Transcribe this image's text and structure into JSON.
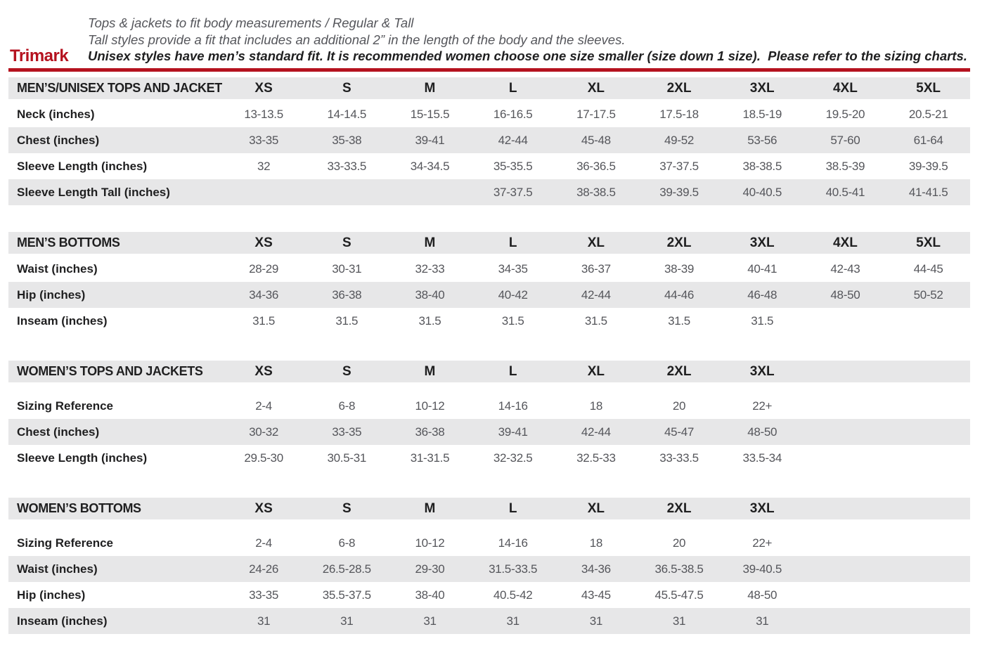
{
  "header": {
    "logo": "Trimark",
    "accent_color": "#b5121f",
    "row_shade_color": "#e7e7e8",
    "notes": [
      "Tops & jackets to fit body measurements / Regular & Tall",
      "Tall styles provide a fit that includes an additional 2” in the length of the body and the sleeves.",
      "Unisex styles have men’s standard fit. It is recommended women choose one size smaller (size down 1 size).  Please refer to the sizing charts."
    ]
  },
  "tables": [
    {
      "title": "MEN’S/UNISEX TOPS AND JACKETS",
      "columns": [
        "XS",
        "S",
        "M",
        "L",
        "XL",
        "2XL",
        "3XL",
        "4XL",
        "5XL"
      ],
      "rows": [
        {
          "label": "Neck (inches)",
          "values": [
            "13-13.5",
            "14-14.5",
            "15-15.5",
            "16-16.5",
            "17-17.5",
            "17.5-18",
            "18.5-19",
            "19.5-20",
            "20.5-21"
          ]
        },
        {
          "label": "Chest (inches)",
          "values": [
            "33-35",
            "35-38",
            "39-41",
            "42-44",
            "45-48",
            "49-52",
            "53-56",
            "57-60",
            "61-64"
          ]
        },
        {
          "label": "Sleeve Length (inches)",
          "values": [
            "32",
            "33-33.5",
            "34-34.5",
            "35-35.5",
            "36-36.5",
            "37-37.5",
            "38-38.5",
            "38.5-39",
            "39-39.5"
          ]
        },
        {
          "label": "Sleeve Length Tall (inches)",
          "values": [
            "",
            "",
            "",
            "37-37.5",
            "38-38.5",
            "39-39.5",
            "40-40.5",
            "40.5-41",
            "41-41.5"
          ]
        }
      ]
    },
    {
      "title": "MEN’S BOTTOMS",
      "columns": [
        "XS",
        "S",
        "M",
        "L",
        "XL",
        "2XL",
        "3XL",
        "4XL",
        "5XL"
      ],
      "rows": [
        {
          "label": "Waist (inches)",
          "values": [
            "28-29",
            "30-31",
            "32-33",
            "34-35",
            "36-37",
            "38-39",
            "40-41",
            "42-43",
            "44-45"
          ]
        },
        {
          "label": "Hip (inches)",
          "values": [
            "34-36",
            "36-38",
            "38-40",
            "40-42",
            "42-44",
            "44-46",
            "46-48",
            "48-50",
            "50-52"
          ]
        },
        {
          "label": "Inseam (inches)",
          "values": [
            "31.5",
            "31.5",
            "31.5",
            "31.5",
            "31.5",
            "31.5",
            "31.5",
            "",
            ""
          ]
        }
      ]
    },
    {
      "title": "WOMEN’S TOPS AND JACKETS",
      "columns": [
        "XS",
        "S",
        "M",
        "L",
        "XL",
        "2XL",
        "3XL"
      ],
      "rows": [
        {
          "label": "Sizing Reference",
          "values": [
            "2-4",
            "6-8",
            "10-12",
            "14-16",
            "18",
            "20",
            "22+"
          ]
        },
        {
          "label": "Chest (inches)",
          "values": [
            "30-32",
            "33-35",
            "36-38",
            "39-41",
            "42-44",
            "45-47",
            "48-50"
          ]
        },
        {
          "label": "Sleeve Length (inches)",
          "values": [
            "29.5-30",
            "30.5-31",
            "31-31.5",
            "32-32.5",
            "32.5-33",
            "33-33.5",
            "33.5-34"
          ]
        }
      ]
    },
    {
      "title": "WOMEN’S BOTTOMS",
      "columns": [
        "XS",
        "S",
        "M",
        "L",
        "XL",
        "2XL",
        "3XL"
      ],
      "rows": [
        {
          "label": "Sizing Reference",
          "values": [
            "2-4",
            "6-8",
            "10-12",
            "14-16",
            "18",
            "20",
            "22+"
          ]
        },
        {
          "label": "Waist (inches)",
          "values": [
            "24-26",
            "26.5-28.5",
            "29-30",
            "31.5-33.5",
            "34-36",
            "36.5-38.5",
            "39-40.5"
          ]
        },
        {
          "label": "Hip (inches)",
          "values": [
            "33-35",
            "35.5-37.5",
            "38-40",
            "40.5-42",
            "43-45",
            "45.5-47.5",
            "48-50"
          ]
        },
        {
          "label": "Inseam (inches)",
          "values": [
            "31",
            "31",
            "31",
            "31",
            "31",
            "31",
            "31"
          ]
        }
      ]
    }
  ]
}
